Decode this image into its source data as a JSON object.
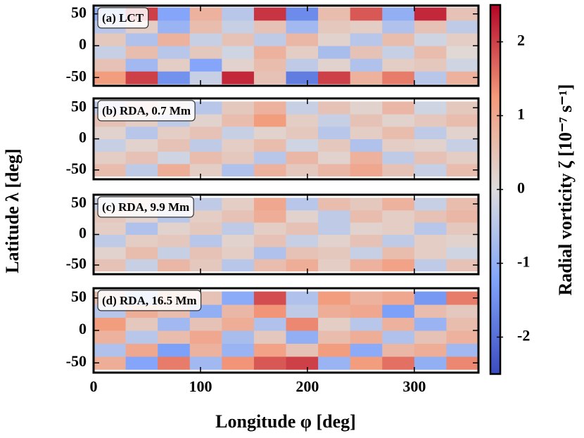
{
  "chart_data": {
    "type": "heatmap",
    "x_label": "Longitude φ [deg]",
    "y_label": "Latitude λ [deg]",
    "xlim": [
      0,
      360
    ],
    "xticks": [
      0,
      100,
      200,
      300
    ],
    "colorbar": {
      "label": "Radial vorticity ζ [10⁻⁷ s⁻¹]",
      "lim": [
        -2.5,
        2.5
      ],
      "ticks": [
        -2,
        -1,
        0,
        1,
        2
      ],
      "colormap": "coolwarm"
    },
    "x": [
      15,
      45,
      75,
      105,
      135,
      165,
      195,
      225,
      255,
      285,
      315,
      345
    ],
    "y": [
      -50,
      -30,
      -10,
      10,
      30,
      50
    ],
    "panels": [
      {
        "title": "(a) LCT",
        "ylim": [
          -63,
          63
        ],
        "yticks": [
          -50,
          0,
          50
        ],
        "z": [
          [
            1.2,
            2.0,
            -1.5,
            -0.3,
            2.2,
            0.5,
            -1.8,
            2.0,
            0.8,
            1.5,
            -0.5,
            0.8
          ],
          [
            0.5,
            -0.8,
            0.3,
            -1.2,
            0.2,
            0.6,
            -0.4,
            0.2,
            -0.6,
            0.3,
            0.4,
            -0.2
          ],
          [
            -0.3,
            0.6,
            -0.5,
            0.4,
            -0.2,
            0.8,
            0.3,
            -0.7,
            0.5,
            -0.3,
            0.6,
            0.1
          ],
          [
            0.4,
            -0.6,
            0.8,
            -0.3,
            0.5,
            -0.4,
            0.7,
            0.2,
            -0.5,
            0.6,
            -0.2,
            0.3
          ],
          [
            -0.5,
            0.3,
            -0.9,
            0.6,
            -0.3,
            0.5,
            -0.8,
            0.4,
            0.3,
            -0.6,
            0.5,
            -0.4
          ],
          [
            -1.0,
            2.0,
            -1.2,
            0.8,
            -0.5,
            2.1,
            -1.6,
            0.6,
            1.8,
            -1.0,
            2.2,
            0.5
          ]
        ]
      },
      {
        "title": "(b) RDA, 0.7 Mm",
        "ylim": [
          -65,
          65
        ],
        "yticks": [
          -50,
          0,
          50
        ],
        "z": [
          [
            0.6,
            -0.4,
            0.9,
            0.3,
            -0.6,
            0.8,
            0.4,
            0.7,
            1.0,
            0.5,
            -0.3,
            0.6
          ],
          [
            0.3,
            0.5,
            -0.2,
            0.6,
            0.4,
            -0.5,
            0.7,
            0.2,
            0.8,
            -0.4,
            0.5,
            0.3
          ],
          [
            -0.3,
            0.2,
            0.5,
            -0.4,
            0.3,
            0.6,
            -0.2,
            0.4,
            -0.6,
            0.3,
            0.2,
            -0.3
          ],
          [
            0.2,
            -0.5,
            0.3,
            0.5,
            -0.3,
            0.2,
            0.4,
            -0.5,
            0.3,
            0.6,
            -0.4,
            0.2
          ],
          [
            0.5,
            0.3,
            -0.4,
            0.2,
            0.6,
            1.2,
            0.3,
            -0.3,
            0.5,
            0.2,
            0.4,
            0.6
          ],
          [
            -0.4,
            0.6,
            0.2,
            -0.5,
            0.4,
            0.8,
            -0.3,
            0.5,
            0.2,
            0.7,
            -0.2,
            0.4
          ]
        ]
      },
      {
        "title": "(c) RDA, 9.9 Mm",
        "ylim": [
          -65,
          65
        ],
        "yticks": [
          -50,
          0,
          50
        ],
        "z": [
          [
            0.5,
            -0.3,
            0.7,
            0.4,
            -0.5,
            0.6,
            0.9,
            0.3,
            0.8,
            1.1,
            -0.4,
            0.5
          ],
          [
            0.2,
            0.6,
            -0.3,
            0.5,
            0.3,
            -0.6,
            0.5,
            0.4,
            -0.3,
            0.6,
            0.3,
            -0.2
          ],
          [
            -0.4,
            0.3,
            0.4,
            -0.5,
            0.2,
            0.5,
            -0.3,
            0.2,
            0.5,
            -0.4,
            0.3,
            0.2
          ],
          [
            0.3,
            -0.6,
            0.2,
            0.4,
            -0.4,
            0.3,
            0.5,
            -0.4,
            0.2,
            0.3,
            -0.5,
            0.4
          ],
          [
            0.4,
            0.2,
            -0.5,
            0.3,
            0.5,
            0.9,
            0.2,
            -0.4,
            0.6,
            0.3,
            0.5,
            0.7
          ],
          [
            -0.3,
            0.5,
            0.3,
            -0.4,
            0.3,
            1.0,
            -0.5,
            0.6,
            0.4,
            0.8,
            -0.3,
            0.6
          ]
        ]
      },
      {
        "title": "(d) RDA, 16.5 Mm",
        "ylim": [
          -65,
          65
        ],
        "yticks": [
          -50,
          0,
          50
        ],
        "z": [
          [
            0.9,
            -1.2,
            1.5,
            -0.8,
            1.3,
            1.8,
            2.0,
            -0.9,
            1.2,
            1.6,
            -1.0,
            1.4
          ],
          [
            -0.6,
            1.0,
            -1.3,
            0.8,
            -0.9,
            1.1,
            0.5,
            1.2,
            -1.1,
            0.7,
            0.9,
            -0.8
          ],
          [
            0.8,
            -0.5,
            0.6,
            1.0,
            -0.7,
            0.4,
            -1.0,
            0.6,
            0.9,
            -0.6,
            0.5,
            0.8
          ],
          [
            1.2,
            0.4,
            -0.8,
            0.5,
            0.9,
            -0.6,
            1.4,
            0.3,
            -0.5,
            0.8,
            -0.9,
            0.6
          ],
          [
            -0.5,
            0.9,
            0.6,
            -1.0,
            0.7,
            1.3,
            -0.4,
            0.9,
            1.0,
            -1.3,
            0.6,
            0.4
          ],
          [
            0.6,
            -0.8,
            0.9,
            0.5,
            -1.1,
            1.9,
            -0.6,
            1.2,
            0.8,
            1.0,
            -1.4,
            1.5
          ]
        ]
      }
    ]
  }
}
